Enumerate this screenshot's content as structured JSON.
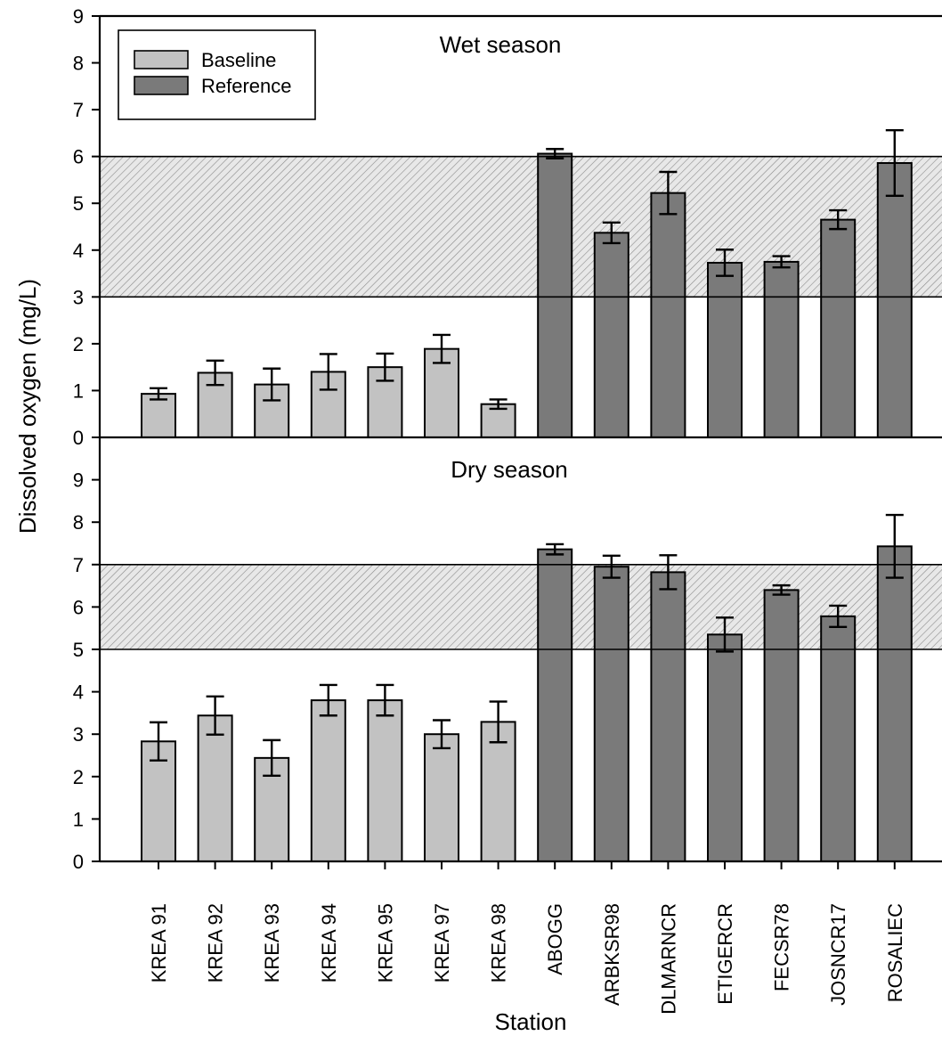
{
  "chart_data": [
    {
      "type": "bar",
      "title": "Wet season",
      "ylim": [
        0,
        9
      ],
      "yticks": [
        0,
        1,
        2,
        3,
        4,
        5,
        6,
        7,
        8,
        9
      ],
      "categories": [
        "KREA 91",
        "KREA 92",
        "KREA 93",
        "KREA 94",
        "KREA 95",
        "KREA 97",
        "KREA 98",
        "ABOGG",
        "ARBKSR98",
        "DLMARNCR",
        "ETIGERCR",
        "FECSR78",
        "JOSNCR17",
        "ROSALIEC"
      ],
      "groups": [
        "Baseline",
        "Baseline",
        "Baseline",
        "Baseline",
        "Baseline",
        "Baseline",
        "Baseline",
        "Reference",
        "Reference",
        "Reference",
        "Reference",
        "Reference",
        "Reference",
        "Reference"
      ],
      "values": [
        0.93,
        1.38,
        1.13,
        1.4,
        1.5,
        1.89,
        0.71,
        6.06,
        4.37,
        5.22,
        3.73,
        3.75,
        4.65,
        5.86
      ],
      "errors": [
        0.12,
        0.26,
        0.34,
        0.38,
        0.29,
        0.3,
        0.1,
        0.1,
        0.22,
        0.45,
        0.28,
        0.12,
        0.2,
        0.7
      ],
      "shaded_band": [
        3,
        6
      ],
      "legend": {
        "position": "top-left",
        "entries": [
          "Baseline",
          "Reference"
        ]
      }
    },
    {
      "type": "bar",
      "title": "Dry season",
      "ylim": [
        0,
        10
      ],
      "yticks": [
        0,
        1,
        2,
        3,
        4,
        5,
        6,
        7,
        8,
        9
      ],
      "categories": [
        "KREA 91",
        "KREA 92",
        "KREA 93",
        "KREA 94",
        "KREA 95",
        "KREA 97",
        "KREA 98",
        "ABOGG",
        "ARBKSR98",
        "DLMARNCR",
        "ETIGERCR",
        "FECSR78",
        "JOSNCR17",
        "ROSALIEC"
      ],
      "groups": [
        "Baseline",
        "Baseline",
        "Baseline",
        "Baseline",
        "Baseline",
        "Baseline",
        "Baseline",
        "Reference",
        "Reference",
        "Reference",
        "Reference",
        "Reference",
        "Reference",
        "Reference"
      ],
      "values": [
        2.83,
        3.44,
        2.44,
        3.8,
        3.8,
        3.0,
        3.29,
        7.36,
        6.95,
        6.82,
        5.35,
        6.4,
        5.78,
        7.43
      ],
      "errors": [
        0.45,
        0.45,
        0.42,
        0.36,
        0.36,
        0.33,
        0.48,
        0.12,
        0.26,
        0.4,
        0.4,
        0.11,
        0.25,
        0.74
      ],
      "shaded_band": [
        5,
        7
      ]
    }
  ],
  "axes": {
    "ylabel": "Dissolved oxygen (mg/L)",
    "xlabel": "Station"
  },
  "colors": {
    "baseline": "#c2c2c2",
    "reference": "#7a7a7a",
    "band": "#e8e8e8",
    "hatch": "#8a8a8a",
    "ink": "#000000"
  }
}
